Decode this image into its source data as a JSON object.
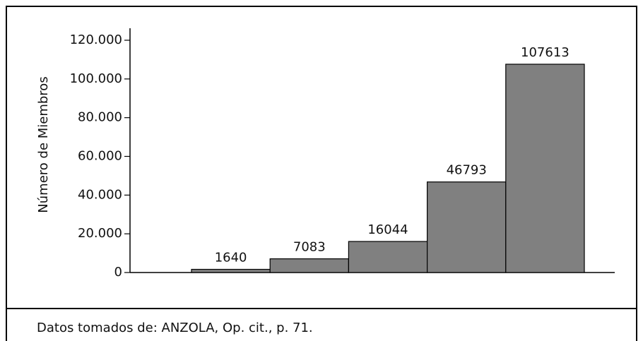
{
  "chart_data": {
    "type": "bar",
    "y_label": "Número de Miembros",
    "categories": [
      null,
      null,
      null,
      null,
      null
    ],
    "values": [
      1640,
      7083,
      16044,
      46793,
      107613
    ],
    "color": "#808080",
    "ylim": [
      0,
      120000
    ],
    "yticks": [
      0,
      {
        "value": 20000,
        "label": "20.000"
      },
      {
        "value": 40000,
        "label": "40.000"
      },
      {
        "value": 60000,
        "label": "60.000"
      },
      {
        "value": 80000,
        "label": "80.000"
      },
      {
        "value": 100000,
        "label": "100.000"
      },
      {
        "value": 120000,
        "label": "120.000"
      }
    ],
    "note": "Datos tomados de: ANZOLA, Op. cit., p. 71."
  }
}
